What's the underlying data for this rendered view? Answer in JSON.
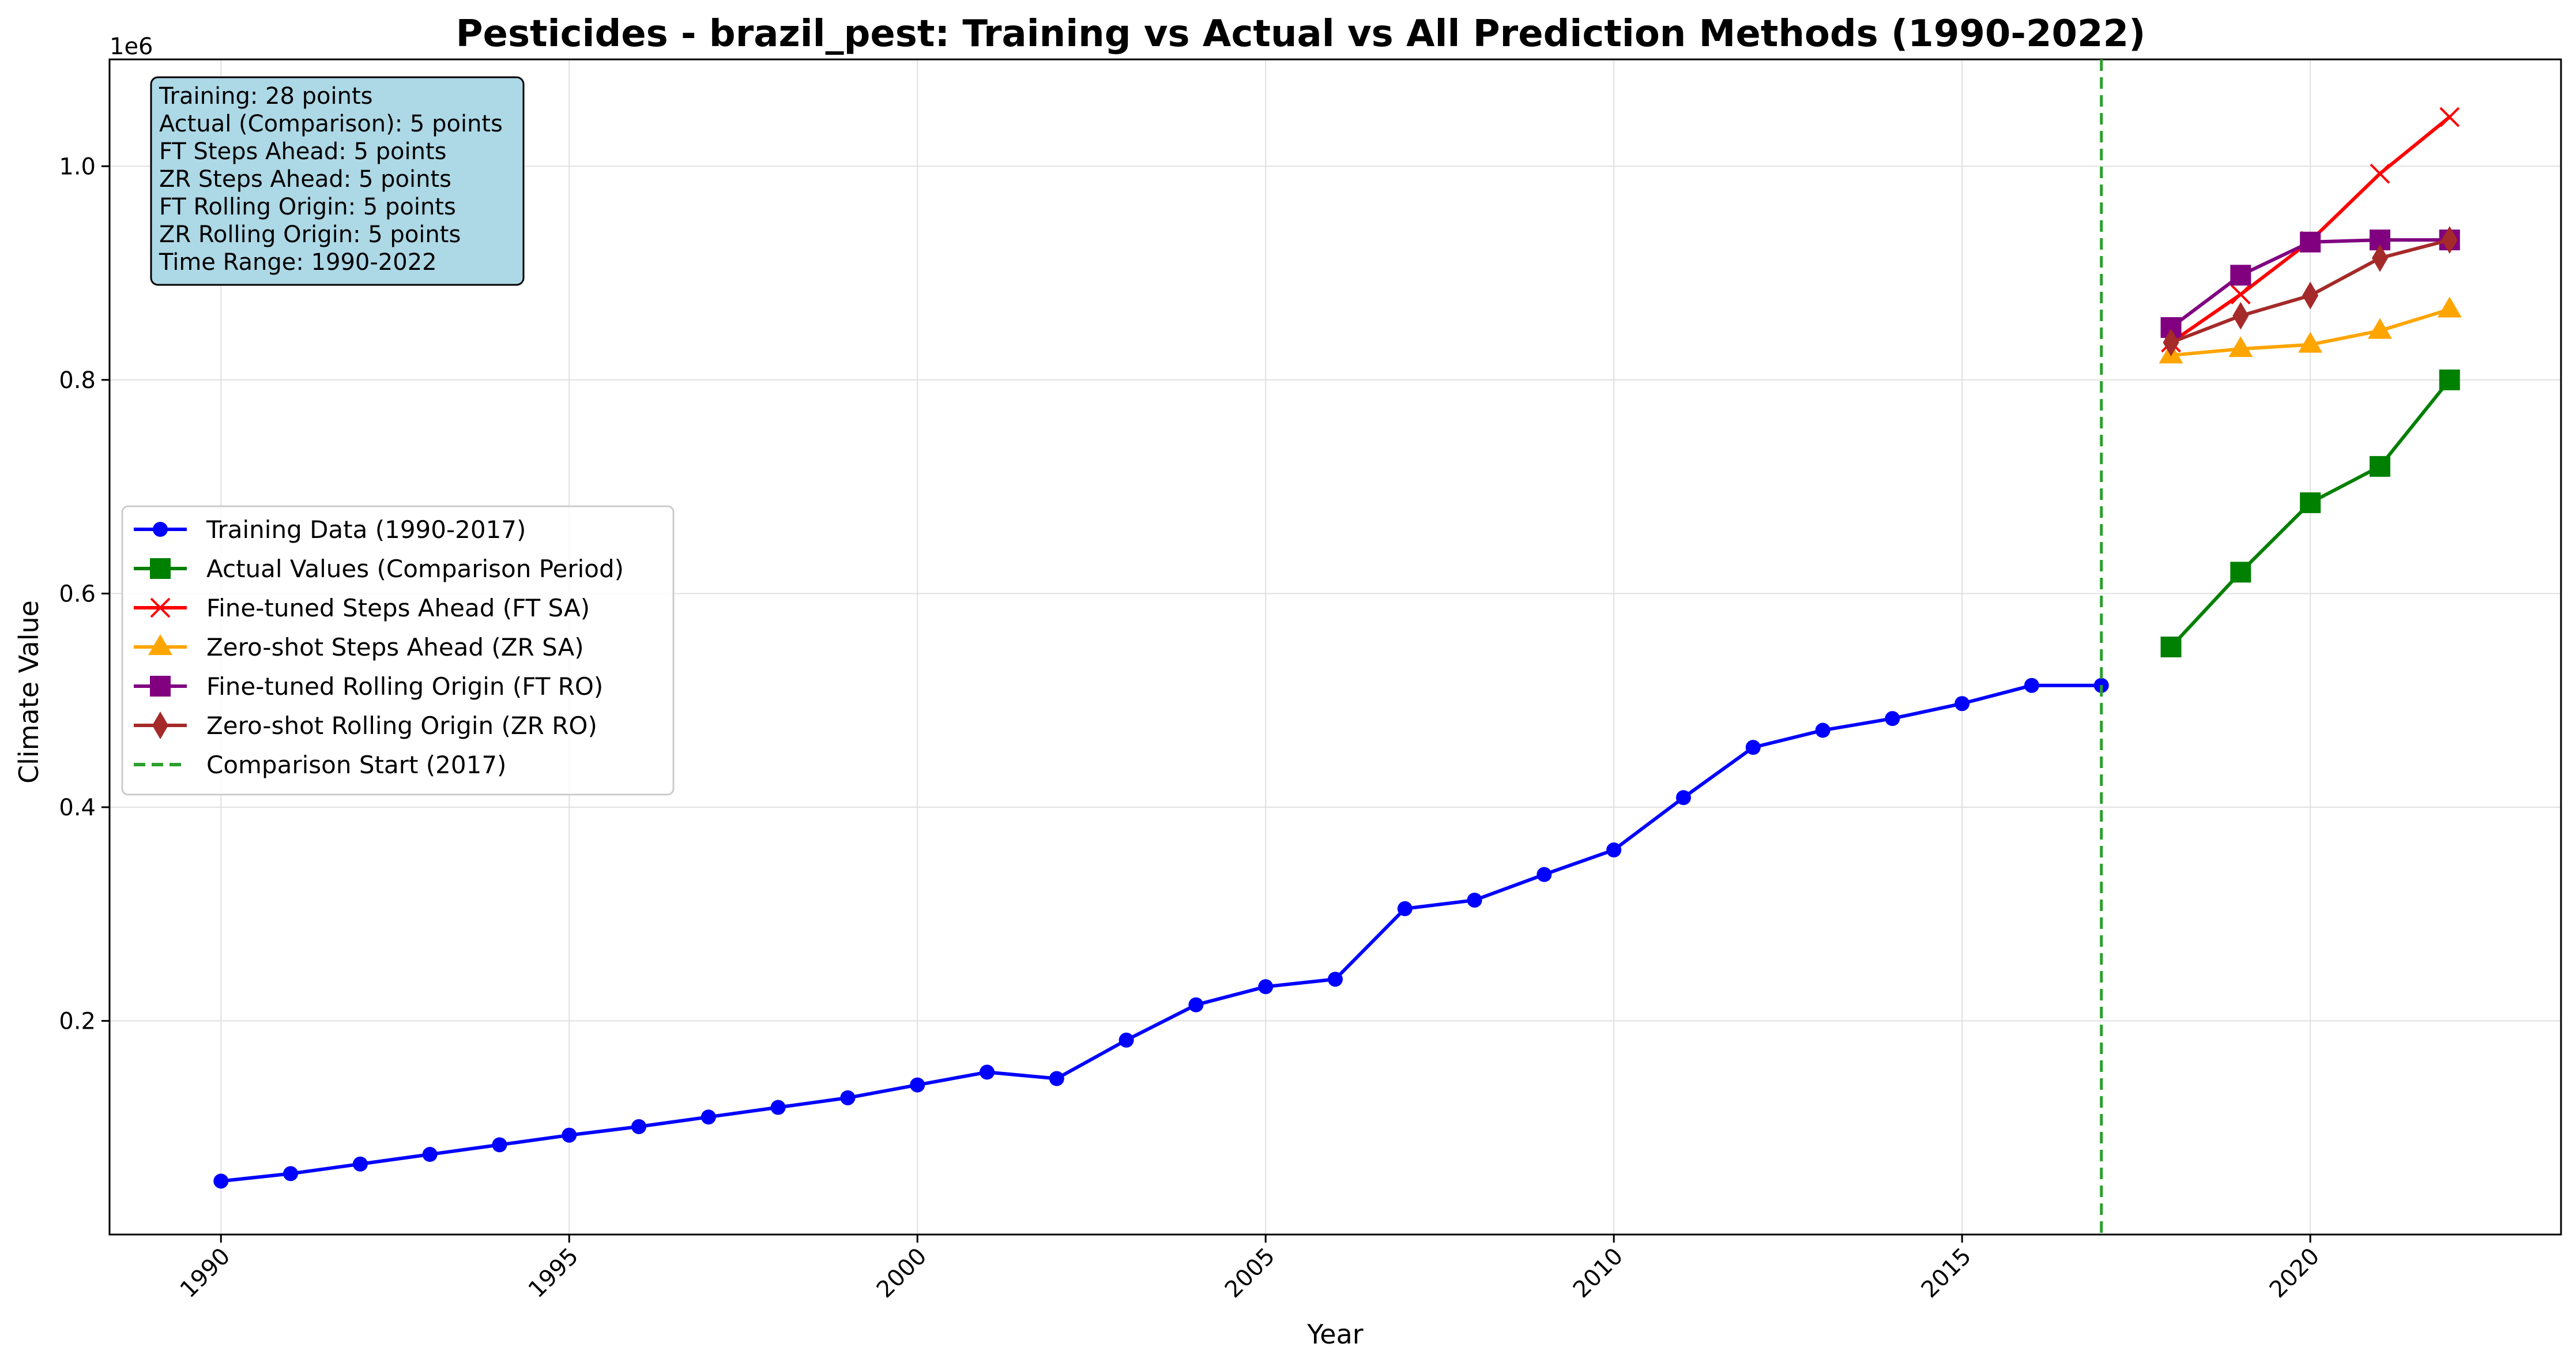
{
  "chart_data": {
    "type": "line",
    "title": "Pesticides - brazil_pest: Training vs Actual vs All Prediction Methods (1990-2022)",
    "xlabel": "Year",
    "ylabel": "Climate Value",
    "y_offset_label": "1e6",
    "xlim": [
      1988.4,
      2023.6
    ],
    "ylim": [
      0,
      1100000
    ],
    "x_ticks": [
      1990,
      1995,
      2000,
      2005,
      2010,
      2015,
      2020
    ],
    "y_ticks": [
      0.2,
      0.4,
      0.6,
      0.8,
      1.0
    ],
    "y_tick_labels": [
      "0.2",
      "0.4",
      "0.6",
      "0.8",
      "1.0"
    ],
    "grid": true,
    "legend_position": "center-left",
    "series": [
      {
        "name": "Training Data (1990-2017)",
        "color": "#0000ff",
        "marker": "circle",
        "x": [
          1990,
          1991,
          1992,
          1993,
          1994,
          1995,
          1996,
          1997,
          1998,
          1999,
          2000,
          2001,
          2002,
          2003,
          2004,
          2005,
          2006,
          2007,
          2008,
          2009,
          2010,
          2011,
          2012,
          2013,
          2014,
          2015,
          2016,
          2017
        ],
        "values": [
          50000,
          57000,
          66000,
          75000,
          84000,
          93000,
          101000,
          110000,
          119000,
          128000,
          140000,
          152000,
          146000,
          182000,
          215000,
          232000,
          239000,
          305000,
          313000,
          337000,
          360000,
          409000,
          456000,
          472000,
          483000,
          497000,
          514000,
          514000
        ]
      },
      {
        "name": "Actual Values (Comparison Period)",
        "color": "#008000",
        "marker": "square",
        "x": [
          2018,
          2019,
          2020,
          2021,
          2022
        ],
        "values": [
          550000,
          620000,
          685000,
          719000,
          800000
        ]
      },
      {
        "name": "Fine-tuned Steps Ahead (FT SA)",
        "color": "#ff0000",
        "marker": "x",
        "x": [
          2018,
          2019,
          2020,
          2021,
          2022
        ],
        "values": [
          835000,
          880000,
          930000,
          993000,
          1046000
        ]
      },
      {
        "name": "Zero-shot Steps Ahead (ZR SA)",
        "color": "#ffa500",
        "marker": "triangle",
        "x": [
          2018,
          2019,
          2020,
          2021,
          2022
        ],
        "values": [
          823000,
          829000,
          833000,
          846000,
          866000
        ]
      },
      {
        "name": "Fine-tuned Rolling Origin (FT RO)",
        "color": "#800080",
        "marker": "square",
        "x": [
          2018,
          2019,
          2020,
          2021,
          2022
        ],
        "values": [
          849000,
          898000,
          929000,
          931000,
          931000
        ]
      },
      {
        "name": "Zero-shot Rolling Origin (ZR RO)",
        "color": "#a52a2a",
        "marker": "diamond",
        "x": [
          2018,
          2019,
          2020,
          2021,
          2022
        ],
        "values": [
          835000,
          860000,
          879000,
          914000,
          931000
        ]
      }
    ],
    "vertical_line": {
      "name": "Comparison Start (2017)",
      "x": 2017,
      "color": "#2ca02c"
    },
    "info_box": {
      "lines": [
        "Training: 28 points",
        "Actual (Comparison): 5 points",
        "FT Steps Ahead: 5 points",
        "ZR Steps Ahead: 5 points",
        "FT Rolling Origin: 5 points",
        "ZR Rolling Origin: 5 points",
        "Time Range: 1990-2022"
      ],
      "background": "#add8e6"
    }
  }
}
